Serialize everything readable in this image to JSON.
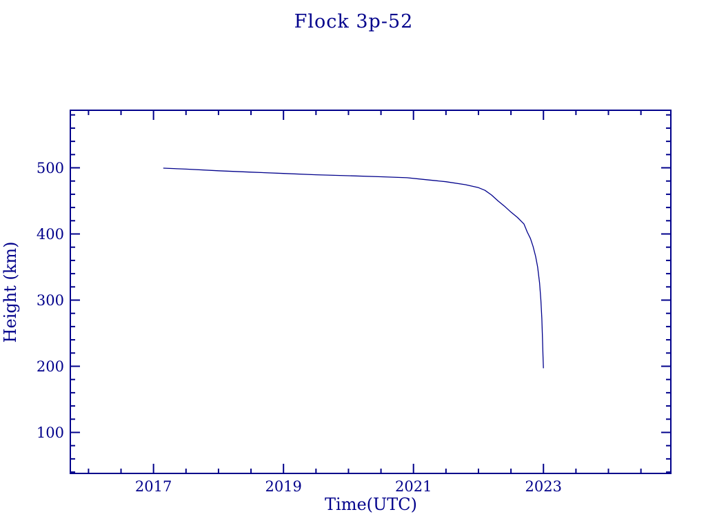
{
  "window": {
    "background": "#FFFFFF"
  },
  "colors": {
    "accent": "#00008B",
    "background": "#FFFFFF"
  },
  "chart_data": {
    "type": "line",
    "title": "Flock 3p-52",
    "xlabel": "Time(UTC)",
    "ylabel": "Height (km)",
    "xlim": [
      2015.72,
      2024.96
    ],
    "ylim": [
      38,
      587
    ],
    "x_major_ticks": [
      2017,
      2019,
      2021,
      2023
    ],
    "x_major_tick_labels": [
      "2017",
      "2019",
      "2021",
      "2023"
    ],
    "x_minor_tick_step": 0.5,
    "y_major_ticks": [
      100,
      200,
      300,
      400,
      500
    ],
    "y_major_tick_labels": [
      "100",
      "200",
      "300",
      "400",
      "500"
    ],
    "y_minor_tick_step": 20,
    "grid": false,
    "legend": "none",
    "axis_color": "#00008B",
    "line_color": "#00008B",
    "series": [
      {
        "name": "Flock 3p-52",
        "color": "#00008B",
        "points": [
          [
            2017.15,
            499.5
          ],
          [
            2017.5,
            498.0
          ],
          [
            2018.0,
            495.5
          ],
          [
            2018.5,
            493.5
          ],
          [
            2019.0,
            491.5
          ],
          [
            2019.5,
            489.5
          ],
          [
            2020.0,
            488.0
          ],
          [
            2020.5,
            486.5
          ],
          [
            2020.9,
            485.0
          ],
          [
            2021.2,
            482.0
          ],
          [
            2021.5,
            479.0
          ],
          [
            2021.8,
            474.5
          ],
          [
            2022.0,
            470.0
          ],
          [
            2022.1,
            466.0
          ],
          [
            2022.2,
            459.0
          ],
          [
            2022.3,
            450.0
          ],
          [
            2022.4,
            442.0
          ],
          [
            2022.5,
            433.0
          ],
          [
            2022.6,
            425.0
          ],
          [
            2022.7,
            415.0
          ],
          [
            2022.75,
            403.0
          ],
          [
            2022.8,
            393.0
          ],
          [
            2022.84,
            381.0
          ],
          [
            2022.88,
            366.0
          ],
          [
            2022.91,
            350.0
          ],
          [
            2022.94,
            326.0
          ],
          [
            2022.96,
            300.0
          ],
          [
            2022.975,
            272.0
          ],
          [
            2022.985,
            243.0
          ],
          [
            2022.993,
            215.0
          ],
          [
            2023.0,
            197.0
          ]
        ]
      }
    ]
  }
}
